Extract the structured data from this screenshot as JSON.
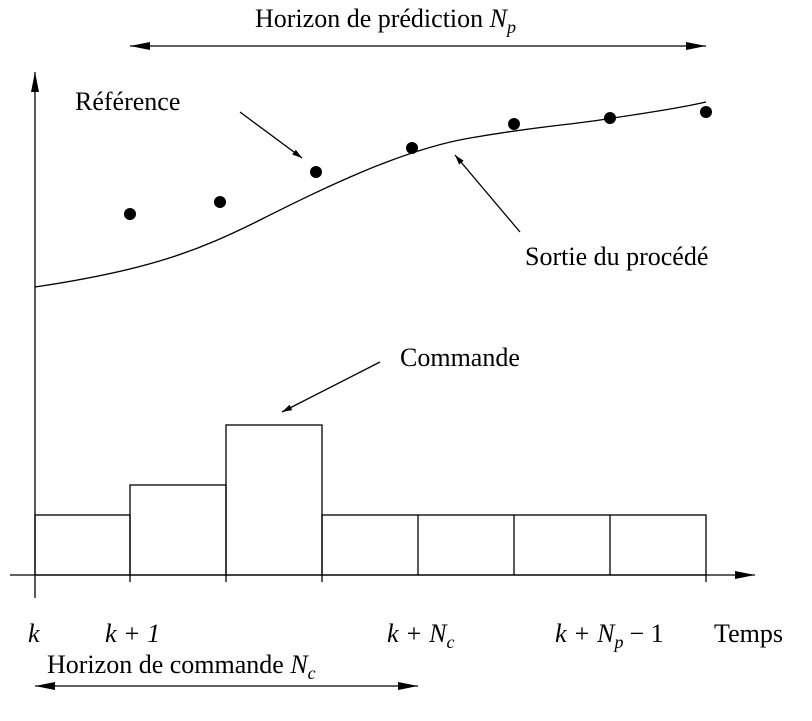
{
  "prediction_horizon": {
    "text": "Horizon de prédiction",
    "symbol": "N",
    "sub": "p"
  },
  "command_horizon": {
    "text": "Horizon de commande",
    "symbol": "N",
    "sub": "c"
  },
  "labels": {
    "reference": "Référence",
    "output": "Sortie du procédé",
    "command": "Commande",
    "time": "Temps"
  },
  "time_ticks": [
    {
      "main": "k"
    },
    {
      "main": "k + 1"
    },
    {
      "main": "k + N",
      "sub": "c"
    },
    {
      "main": "k + N",
      "sub": "p",
      "tail": "− 1"
    }
  ]
}
